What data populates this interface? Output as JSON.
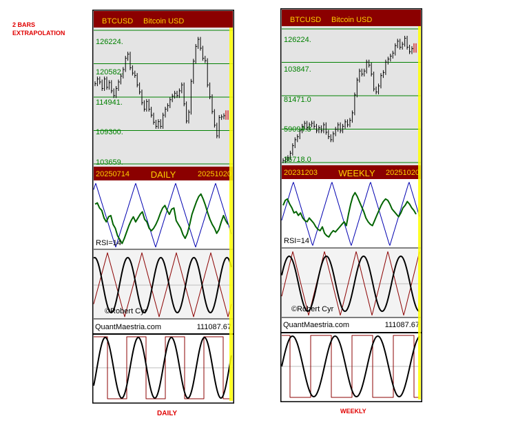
{
  "annotation": {
    "line1": "2 BARS",
    "line2": "EXTRAPOLATION"
  },
  "colors": {
    "header_bg": "#8b0000",
    "header_text": "#ffd200",
    "plot_bg": "#e4e4e4",
    "grid_green": "#008000",
    "price_label": "#008000",
    "rsi_green": "#006400",
    "triangle_blue": "#0000b0",
    "triangle_red": "#8b0000",
    "highlight_yellow": "#ffff00",
    "note_red": "#e00000"
  },
  "chart_data": [
    {
      "type": "composite-cycle-chart",
      "caption": "DAILY",
      "symbol": "BTCUSD",
      "name": "Bitcoin USD",
      "price_levels": [
        "126224.",
        "120582.",
        "114941.",
        "109300.",
        "103659."
      ],
      "price_axis": {
        "min": 103659,
        "max": 126224
      },
      "price_series": [
        117200,
        118000,
        117500,
        116400,
        118000,
        116600,
        117400,
        116000,
        115200,
        116400,
        117500,
        118500,
        119600,
        121500,
        122200,
        119900,
        119000,
        118600,
        117000,
        115800,
        114000,
        112900,
        114200,
        112900,
        111900,
        110700,
        110000,
        110800,
        110000,
        111900,
        112900,
        113500,
        114500,
        115100,
        115600,
        115200,
        116000,
        117000,
        113800,
        110900,
        112400,
        117600,
        121000,
        123500,
        124700,
        123200,
        121500,
        121100,
        117000,
        115000,
        112500,
        110200,
        108400,
        111500,
        111600,
        111800
      ],
      "date_start": "20250714",
      "date_end": "20251020",
      "timeframe_label": "DAILY",
      "rsi_label": "RSI=14",
      "rsi_series": [
        68,
        70,
        62,
        58,
        46,
        40,
        48,
        50,
        36,
        30,
        18,
        12,
        6,
        14,
        24,
        34,
        42,
        48,
        40,
        46,
        52,
        56,
        44,
        40,
        30,
        26,
        30,
        36,
        44,
        54,
        62,
        66,
        58,
        52,
        60,
        62,
        42,
        36,
        30,
        20,
        14,
        22,
        36,
        52,
        62,
        72,
        80,
        84,
        76,
        66,
        54,
        44,
        36,
        30,
        22,
        28,
        40,
        50,
        42,
        36
      ],
      "credit": "©Robert Cyr",
      "website": "QuantMaestria.com",
      "value_label": "111087.67"
    },
    {
      "type": "composite-cycle-chart",
      "caption": "WEEKLY",
      "symbol": "BTCUSD",
      "name": "Bitcoin USD",
      "price_levels": [
        "126224.",
        "103847.",
        "81471.0",
        "59094.3",
        "36718.0"
      ],
      "price_axis": {
        "min": 36718,
        "max": 126224
      },
      "price_series": [
        38000,
        39000,
        40000,
        43000,
        48000,
        52000,
        54000,
        58000,
        61000,
        63000,
        60000,
        62000,
        63000,
        61000,
        58000,
        60000,
        58000,
        62000,
        57000,
        54000,
        52000,
        56000,
        59000,
        62000,
        58000,
        61000,
        64000,
        62000,
        65000,
        70000,
        82000,
        92000,
        98000,
        96000,
        98000,
        104000,
        102000,
        96000,
        86000,
        84000,
        88000,
        95000,
        97000,
        104000,
        106000,
        108000,
        110000,
        115000,
        118000,
        114000,
        116000,
        120000,
        114000,
        111000,
        113000
      ],
      "date_start": "20231203",
      "date_end": "20251020",
      "timeframe_label": "WEEKLY",
      "rsi_label": "RSI=14",
      "rsi_series": [
        64,
        72,
        74,
        66,
        60,
        52,
        54,
        48,
        52,
        44,
        40,
        38,
        44,
        40,
        36,
        30,
        26,
        24,
        30,
        20,
        16,
        14,
        20,
        24,
        22,
        26,
        30,
        34,
        38,
        32,
        50,
        66,
        78,
        84,
        78,
        70,
        62,
        54,
        44,
        38,
        34,
        32,
        40,
        48,
        56,
        64,
        70,
        74,
        72,
        66,
        58,
        54,
        50,
        46,
        52,
        60,
        64,
        70,
        66,
        60,
        56,
        50
      ],
      "credit": "©Robert Cyr",
      "website": "QuantMaestria.com",
      "value_label": "111087.67"
    }
  ]
}
